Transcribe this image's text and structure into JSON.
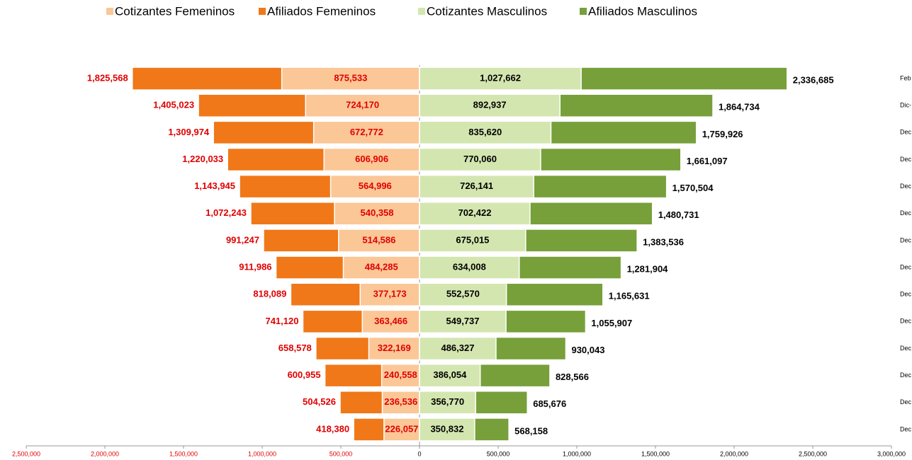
{
  "chart_data": {
    "type": "pyramid",
    "categories": [
      "Feb",
      "Dic-",
      "Dec",
      "Dec",
      "Dec",
      "Dec",
      "Dec",
      "Dec",
      "Dec",
      "Dec",
      "Dec",
      "Dec",
      "Dec",
      "Dec"
    ],
    "series": [
      {
        "name": "Cotizantes Femeninos",
        "color": "#fbc796",
        "values": [
          875533,
          724170,
          672772,
          606906,
          564996,
          540358,
          514586,
          484285,
          377173,
          363466,
          322169,
          240558,
          236536,
          226057
        ],
        "value_labels": [
          "875,533",
          "724,170",
          "672,772",
          "606,906",
          "564,996",
          "540,358",
          "514,586",
          "484,285",
          "377,173",
          "363,466",
          "322,169",
          "240,558",
          "236,536",
          "226,057"
        ]
      },
      {
        "name": "Afiliados Femeninos",
        "color": "#f07818",
        "values": [
          1825568,
          1405023,
          1309974,
          1220033,
          1143945,
          1072243,
          991247,
          911986,
          818089,
          741120,
          658578,
          600955,
          504526,
          418380
        ],
        "value_labels": [
          "1,825,568",
          "1,405,023",
          "1,309,974",
          "1,220,033",
          "1,143,945",
          "1,072,243",
          "991,247",
          "911,986",
          "818,089",
          "741,120",
          "658,578",
          "600,955",
          "504,526",
          "418,380"
        ]
      },
      {
        "name": "Cotizantes Masculinos",
        "color": "#d4e6b0",
        "values": [
          1027662,
          892937,
          835620,
          770060,
          726141,
          702422,
          675015,
          634008,
          552570,
          549737,
          486327,
          386054,
          356770,
          350832
        ],
        "value_labels": [
          "1,027,662",
          "892,937",
          "835,620",
          "770,060",
          "726,141",
          "702,422",
          "675,015",
          "634,008",
          "552,570",
          "549,737",
          "486,327",
          "386,054",
          "356,770",
          "350,832"
        ]
      },
      {
        "name": "Afiliados Masculinos",
        "color": "#77a03a",
        "values": [
          2336685,
          1864734,
          1759926,
          1661097,
          1570504,
          1480731,
          1383536,
          1281904,
          1165631,
          1055907,
          930043,
          828566,
          685676,
          568158
        ],
        "value_labels": [
          "2,336,685",
          "1,864,734",
          "1,759,926",
          "1,661,097",
          "1,570,504",
          "1,480,731",
          "1,383,536",
          "1,281,904",
          "1,165,631",
          "1,055,907",
          "930,043",
          "828,566",
          "685,676",
          "568,158"
        ]
      }
    ],
    "xlim": [
      -2500000,
      3000000
    ],
    "xticks": [
      {
        "value": -2500000,
        "label": "2,500,000"
      },
      {
        "value": -2000000,
        "label": "2,000,000"
      },
      {
        "value": -1500000,
        "label": "1,500,000"
      },
      {
        "value": -1000000,
        "label": "1,000,000"
      },
      {
        "value": -500000,
        "label": "500,000"
      },
      0,
      {
        "value": 500000,
        "label": "500,000"
      },
      {
        "value": 1000000,
        "label": "1,000,000"
      },
      {
        "value": 1500000,
        "label": "1,500,000"
      },
      {
        "value": 2000000,
        "label": "2,000,000"
      },
      {
        "value": 2500000,
        "label": "2,500,000"
      },
      {
        "value": 3000000,
        "label": "3,000,000"
      }
    ],
    "legend": "top"
  }
}
